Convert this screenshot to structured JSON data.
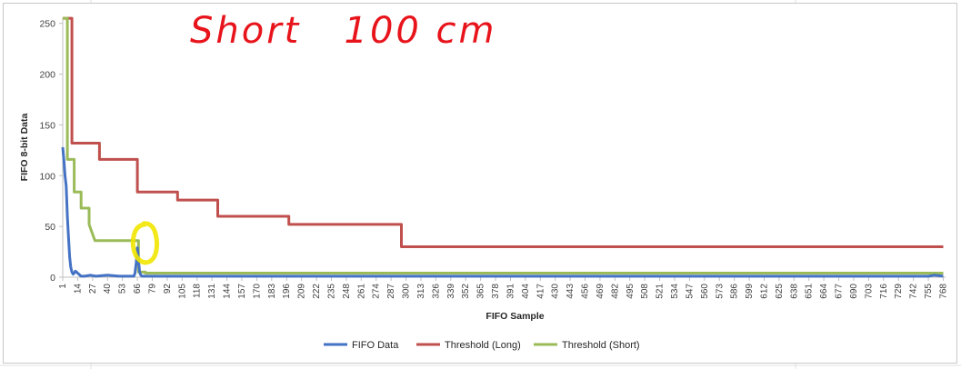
{
  "chart_data": {
    "type": "line",
    "title": "",
    "xlabel": "FIFO Sample",
    "ylabel": "FIFO 8-bit Data",
    "ylim": [
      0,
      256
    ],
    "xlim": [
      1,
      770
    ],
    "yticks": [
      0,
      50,
      100,
      150,
      200,
      250
    ],
    "xticks": [
      1,
      14,
      27,
      40,
      53,
      66,
      79,
      92,
      105,
      118,
      131,
      144,
      157,
      170,
      183,
      196,
      209,
      222,
      235,
      248,
      261,
      274,
      287,
      300,
      313,
      326,
      339,
      352,
      365,
      378,
      391,
      404,
      417,
      430,
      443,
      456,
      469,
      482,
      495,
      508,
      521,
      534,
      547,
      560,
      573,
      586,
      599,
      612,
      625,
      638,
      651,
      664,
      677,
      690,
      703,
      716,
      729,
      742,
      755,
      768
    ],
    "grid": false,
    "legend_position": "bottom",
    "series": [
      {
        "name": "FIFO Data",
        "color": "#4472C4",
        "x": [
          1,
          2,
          3,
          4,
          5,
          6,
          7,
          8,
          9,
          10,
          11,
          12,
          13,
          14,
          15,
          16,
          17,
          18,
          20,
          25,
          30,
          40,
          50,
          60,
          61,
          62,
          63,
          64,
          65,
          66,
          67,
          68,
          69,
          70,
          72,
          80,
          100,
          150,
          200,
          300,
          400,
          500,
          600,
          700,
          755,
          760,
          768
        ],
        "y": [
          128,
          115,
          100,
          90,
          60,
          40,
          20,
          10,
          5,
          3,
          4,
          6,
          5,
          4,
          3,
          2,
          1,
          1,
          1,
          2,
          1,
          2,
          1,
          1,
          1,
          1,
          1,
          4,
          14,
          29,
          17,
          5,
          2,
          1,
          1,
          1,
          1,
          1,
          1,
          1,
          1,
          1,
          1,
          1,
          1,
          2,
          1
        ]
      },
      {
        "name": "Threshold (Long)",
        "color": "#C0504D",
        "x": [
          1,
          9,
          9,
          33,
          33,
          66,
          66,
          101,
          101,
          136,
          136,
          198,
          198,
          296,
          296,
          768
        ],
        "y": [
          255,
          255,
          132,
          132,
          116,
          116,
          84,
          84,
          76,
          76,
          60,
          60,
          52,
          52,
          30,
          30
        ]
      },
      {
        "name": "Threshold (Short)",
        "color": "#9BBB59",
        "x": [
          1,
          5,
          5,
          11,
          11,
          17,
          17,
          24,
          24,
          29,
          29,
          67,
          67,
          73,
          73,
          768
        ],
        "y": [
          255,
          255,
          116,
          116,
          84,
          84,
          68,
          68,
          52,
          36,
          36,
          36,
          5,
          5,
          4,
          4
        ]
      }
    ]
  },
  "annotation": {
    "handwriting": "Short   100 cm",
    "handwriting_color": "#E8141C",
    "highlight_color": "#F2E500"
  }
}
